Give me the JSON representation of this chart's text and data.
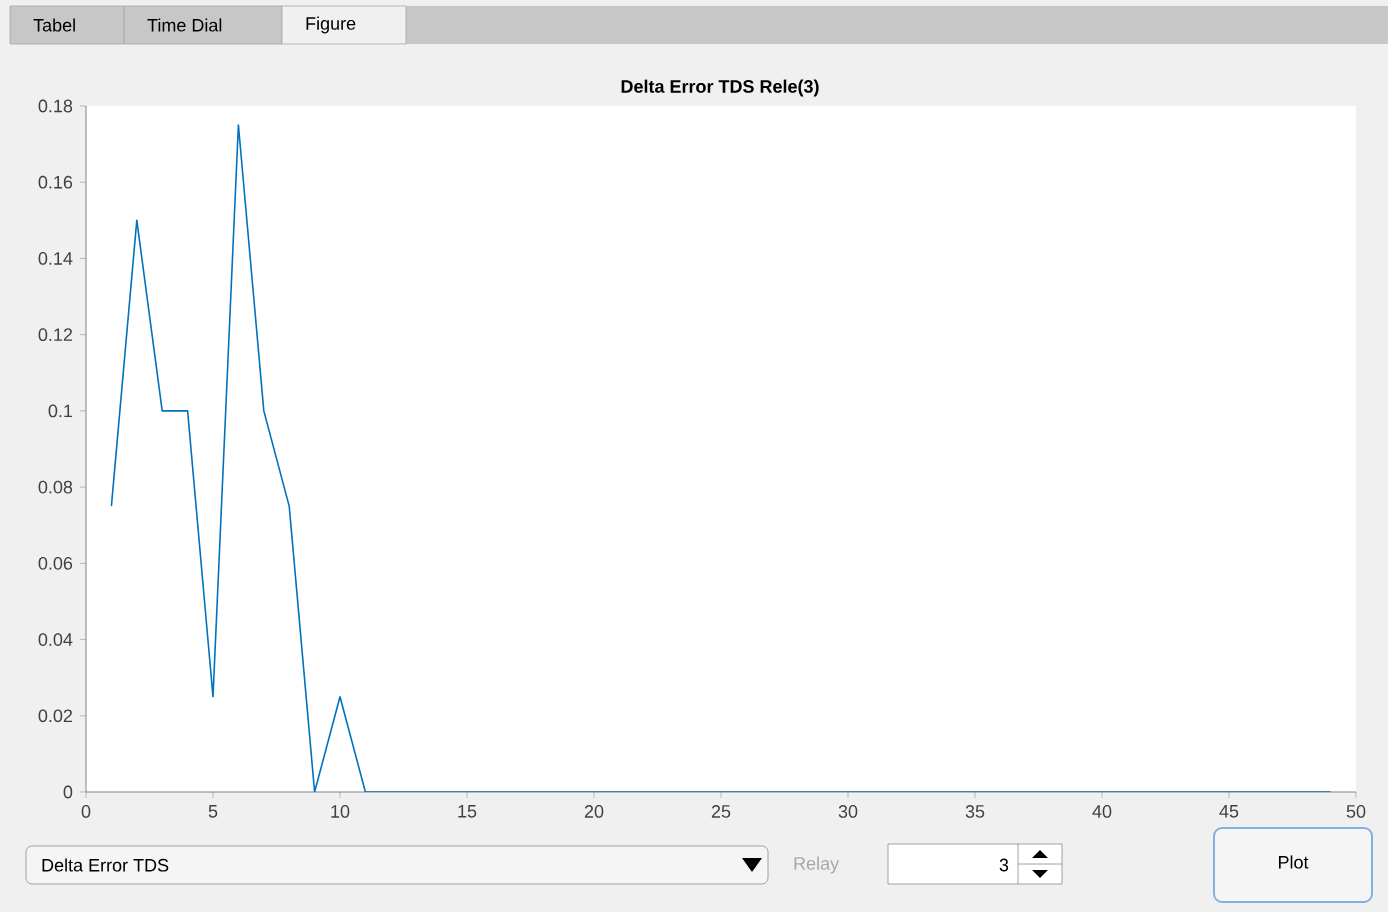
{
  "chart_data": {
    "type": "line",
    "title": "Delta Error TDS Rele(3)",
    "x": [
      1,
      2,
      3,
      4,
      5,
      6,
      7,
      8,
      9,
      10,
      11,
      12,
      13,
      14,
      15,
      16,
      17,
      18,
      19,
      20,
      21,
      22,
      23,
      24,
      25,
      26,
      27,
      28,
      29,
      30,
      31,
      32,
      33,
      34,
      35,
      36,
      37,
      38,
      39,
      40,
      41,
      42,
      43,
      44,
      45,
      46,
      47,
      48,
      49
    ],
    "values": [
      0.075,
      0.15,
      0.1,
      0.1,
      0.025,
      0.175,
      0.1,
      0.075,
      0,
      0.025,
      0,
      0,
      0,
      0,
      0,
      0,
      0,
      0,
      0,
      0,
      0,
      0,
      0,
      0,
      0,
      0,
      0,
      0,
      0,
      0,
      0,
      0,
      0,
      0,
      0,
      0,
      0,
      0,
      0,
      0,
      0,
      0,
      0,
      0,
      0,
      0,
      0,
      0,
      0
    ],
    "color": "#0072bd",
    "marker": "none",
    "line_style": "solid",
    "grid": false,
    "xlim": [
      0,
      50
    ],
    "xticks": [
      0,
      5,
      10,
      15,
      20,
      25,
      30,
      35,
      40,
      45,
      50
    ],
    "ylim": [
      0,
      0.18
    ],
    "yticks": [
      0,
      0.02,
      0.04,
      0.06,
      0.08,
      0.1,
      0.12,
      0.14,
      0.16,
      0.18
    ],
    "annotations": [
      "Tabel",
      "Time Dial",
      "Figure",
      "Delta Error TDS",
      "Relay",
      "3",
      "Plot"
    ]
  }
}
